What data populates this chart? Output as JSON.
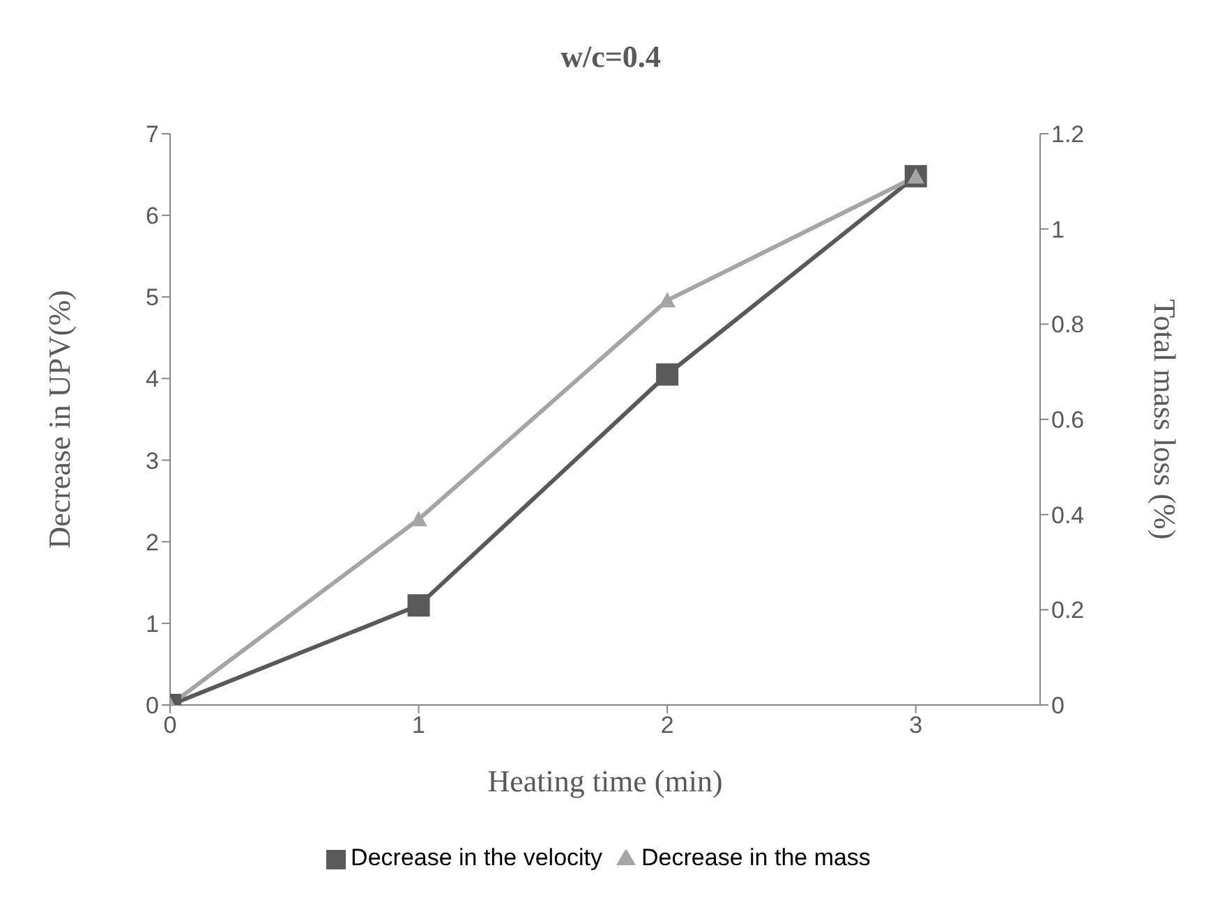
{
  "chart_data": {
    "type": "line",
    "title": "w/c=0.4",
    "xlabel": "Heating time (min)",
    "ylabel": "Decrease in UPV(%)",
    "y2label": "Total mass loss (%)",
    "x": [
      0,
      1,
      2,
      3
    ],
    "xlim": [
      0,
      3.5
    ],
    "xticks": [
      0,
      1,
      2,
      3
    ],
    "ylim": [
      0,
      7
    ],
    "yticks": [
      0,
      1,
      2,
      3,
      4,
      5,
      6,
      7
    ],
    "y2lim": [
      0,
      1.2
    ],
    "y2ticks": [
      0,
      {
        "value": 0.2,
        "label": "0.2"
      },
      {
        "value": 0.4,
        "label": "0.4"
      },
      {
        "value": 0.6,
        "label": "0.6"
      },
      {
        "value": 0.8,
        "label": "0.8"
      },
      1,
      {
        "value": 1.2,
        "label": "1.2"
      }
    ],
    "series": [
      {
        "name": "Decrease in the velocity",
        "color": "#595959",
        "marker": "square",
        "values": [
          0,
          1.22,
          4.05,
          6.48
        ]
      },
      {
        "name": "Decrease in the mass",
        "color": "#a5a5a5",
        "marker": "triangle",
        "axis": "y2",
        "values": [
          0,
          0.39,
          0.85,
          1.11
        ]
      }
    ],
    "grid": false,
    "legend": "bottom"
  }
}
